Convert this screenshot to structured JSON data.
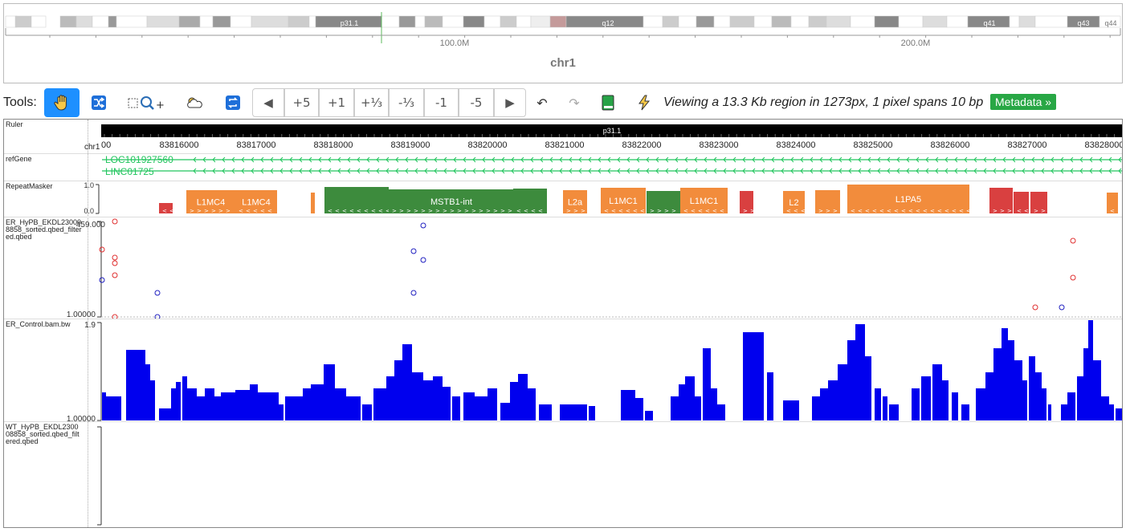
{
  "ideogram": {
    "chrom_label": "chr1",
    "band_labels": [
      "p31.1",
      "q12",
      "q41",
      "q43",
      "q44"
    ],
    "scale_labels": [
      "100.0M",
      "200.0M"
    ]
  },
  "toolbar": {
    "tools_label": "Tools:",
    "buttons": {
      "drag": "hand-icon",
      "shuffle": "shuffle-icon",
      "zoom_select": "zoom-select-icon",
      "highlight": "cloud-icon",
      "refresh": "refresh-icon",
      "back": "◀",
      "plus5": "+5",
      "plus1": "+1",
      "plus_third": "+⅓",
      "minus_third": "-⅓",
      "minus1": "-1",
      "minus5": "-5",
      "forward": "▶",
      "undo": "↶",
      "redo": "↷",
      "book": "book-icon",
      "bolt": "bolt-icon"
    },
    "status_text": "Viewing a 13.3 Kb region in 1273px, 1 pixel spans 10 bp",
    "metadata_label": "Metadata »"
  },
  "tracks": {
    "ruler": {
      "label": "Ruler",
      "band": "p31.1",
      "chrom": "chr1",
      "start_fragment": "00",
      "ticks": [
        "83816000",
        "83817000",
        "83818000",
        "83819000",
        "83820000",
        "83821000",
        "83822000",
        "83823000",
        "83824000",
        "83825000",
        "83826000",
        "83827000",
        "83828000"
      ]
    },
    "refgene": {
      "label": "refGene",
      "genes": [
        "LOC101927560",
        "LINC01725"
      ]
    },
    "repeatmasker": {
      "label": "RepeatMasker",
      "scale_top": "1.0",
      "scale_bottom": "0.0",
      "elements": [
        {
          "name": "",
          "color": "#d94040"
        },
        {
          "name": "L1MC4",
          "color": "#f28c3c"
        },
        {
          "name": "L1MC4",
          "color": "#f28c3c"
        },
        {
          "name": "",
          "color": "#f28c3c"
        },
        {
          "name": "",
          "color": "#3d8b3d"
        },
        {
          "name": "MSTB1-int",
          "color": "#3d8b3d"
        },
        {
          "name": "",
          "color": "#3d8b3d"
        },
        {
          "name": "L2a",
          "color": "#f28c3c"
        },
        {
          "name": "L1MC1",
          "color": "#f28c3c"
        },
        {
          "name": "",
          "color": "#3d8b3d"
        },
        {
          "name": "L1MC1",
          "color": "#f28c3c"
        },
        {
          "name": "",
          "color": "#d94040"
        },
        {
          "name": "L2",
          "color": "#f28c3c"
        },
        {
          "name": "",
          "color": "#f28c3c"
        },
        {
          "name": "L1PA5",
          "color": "#f28c3c"
        },
        {
          "name": "",
          "color": "#d94040"
        },
        {
          "name": "",
          "color": "#d94040"
        },
        {
          "name": "",
          "color": "#d94040"
        },
        {
          "name": "",
          "color": "#f28c3c"
        }
      ]
    },
    "er_hypb": {
      "label": "ER_HyPB_EKDL230008858_sorted.qbed_filtered.qbed",
      "scale_top": "459.000",
      "scale_bottom": "1.00000"
    },
    "er_control": {
      "label": "ER_Control.bam.bw",
      "scale_top": "1.9",
      "scale_bottom": "1.00000"
    },
    "wt_hypb": {
      "label": "WT_HyPB_EKDL230008858_sorted.qbed_filtered.qbed"
    }
  }
}
